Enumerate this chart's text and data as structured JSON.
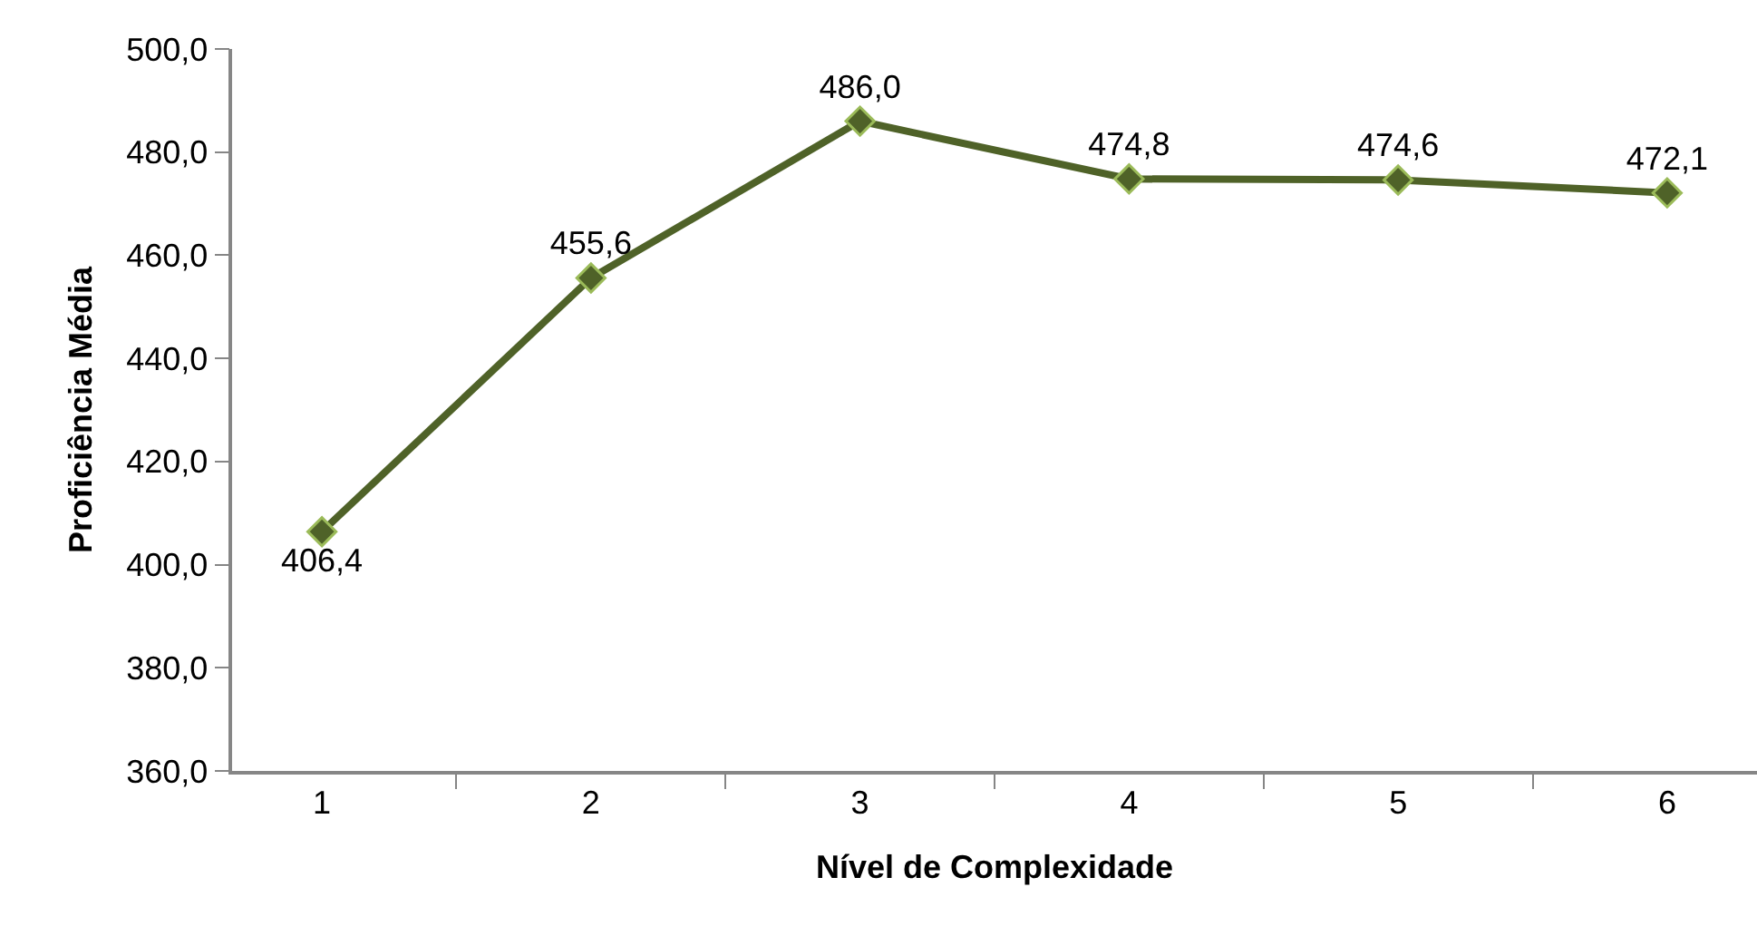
{
  "chart_data": {
    "type": "line",
    "xlabel": "Nível de Complexidade",
    "ylabel": "Proficiência Média",
    "categories": [
      "1",
      "2",
      "3",
      "4",
      "5",
      "6"
    ],
    "series": [
      {
        "color": "#4f6228",
        "values": [
          406.4,
          455.6,
          486.0,
          474.8,
          474.6,
          472.1
        ],
        "value_labels": [
          "406,4",
          "455,6",
          "486,0",
          "474,8",
          "474,6",
          "472,1"
        ]
      }
    ],
    "ylim": [
      360,
      500
    ],
    "yticks": [
      {
        "value": 360,
        "label": "360,0"
      },
      {
        "value": 380,
        "label": "380,0"
      },
      {
        "value": 400,
        "label": "400,0"
      },
      {
        "value": 420,
        "label": "420,0"
      },
      {
        "value": 440,
        "label": "440,0"
      },
      {
        "value": 460,
        "label": "460,0"
      },
      {
        "value": 480,
        "label": "480,0"
      },
      {
        "value": 500,
        "label": "500,0"
      }
    ],
    "grid": false,
    "marker": "diamond",
    "line_style": "solid"
  }
}
